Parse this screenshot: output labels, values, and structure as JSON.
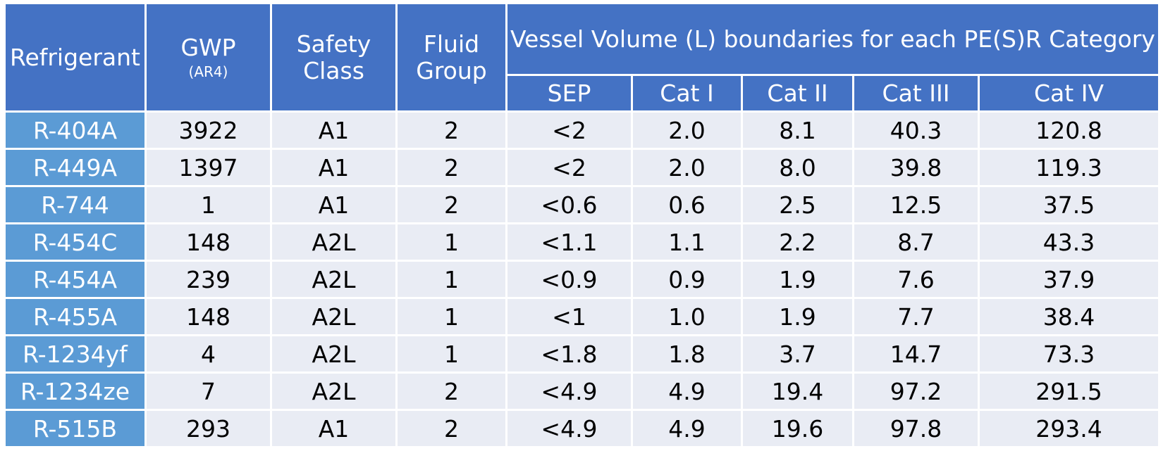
{
  "table": {
    "headers": {
      "refrigerant": "Refrigerant",
      "gwp": "GWP",
      "gwp_sub": "(AR4)",
      "safety_class": "Safety Class",
      "fluid_group": "Fluid Group",
      "vessel_volume": "Vessel Volume (L) boundaries for each PE(S)R Category",
      "sep": "SEP",
      "cat1": "Cat I",
      "cat2": "Cat II",
      "cat3": "Cat III",
      "cat4": "Cat IV"
    },
    "rows": [
      {
        "refrigerant": "R-404A",
        "gwp": "3922",
        "safety": "A1",
        "fluid": "2",
        "sep": "<2",
        "cat1": "2.0",
        "cat2": "8.1",
        "cat3": "40.3",
        "cat4": "120.8"
      },
      {
        "refrigerant": "R-449A",
        "gwp": "1397",
        "safety": "A1",
        "fluid": "2",
        "sep": "<2",
        "cat1": "2.0",
        "cat2": "8.0",
        "cat3": "39.8",
        "cat4": "119.3"
      },
      {
        "refrigerant": "R-744",
        "gwp": "1",
        "safety": "A1",
        "fluid": "2",
        "sep": "<0.6",
        "cat1": "0.6",
        "cat2": "2.5",
        "cat3": "12.5",
        "cat4": "37.5"
      },
      {
        "refrigerant": "R-454C",
        "gwp": "148",
        "safety": "A2L",
        "fluid": "1",
        "sep": "<1.1",
        "cat1": "1.1",
        "cat2": "2.2",
        "cat3": "8.7",
        "cat4": "43.3"
      },
      {
        "refrigerant": "R-454A",
        "gwp": "239",
        "safety": "A2L",
        "fluid": "1",
        "sep": "<0.9",
        "cat1": "0.9",
        "cat2": "1.9",
        "cat3": "7.6",
        "cat4": "37.9"
      },
      {
        "refrigerant": "R-455A",
        "gwp": "148",
        "safety": "A2L",
        "fluid": "1",
        "sep": "<1",
        "cat1": "1.0",
        "cat2": "1.9",
        "cat3": "7.7",
        "cat4": "38.4"
      },
      {
        "refrigerant": "R-1234yf",
        "gwp": "4",
        "safety": "A2L",
        "fluid": "1",
        "sep": "<1.8",
        "cat1": "1.8",
        "cat2": "3.7",
        "cat3": "14.7",
        "cat4": "73.3"
      },
      {
        "refrigerant": "R-1234ze",
        "gwp": "7",
        "safety": "A2L",
        "fluid": "2",
        "sep": "<4.9",
        "cat1": "4.9",
        "cat2": "19.4",
        "cat3": "97.2",
        "cat4": "291.5"
      },
      {
        "refrigerant": "R-515B",
        "gwp": "293",
        "safety": "A1",
        "fluid": "2",
        "sep": "<4.9",
        "cat1": "4.9",
        "cat2": "19.6",
        "cat3": "97.8",
        "cat4": "293.4"
      }
    ]
  },
  "colors": {
    "header_bg": "#4472c4",
    "refrigerant_col_bg": "#5b9bd5",
    "body_bg": "#e9ecf4",
    "grid": "#ffffff"
  }
}
